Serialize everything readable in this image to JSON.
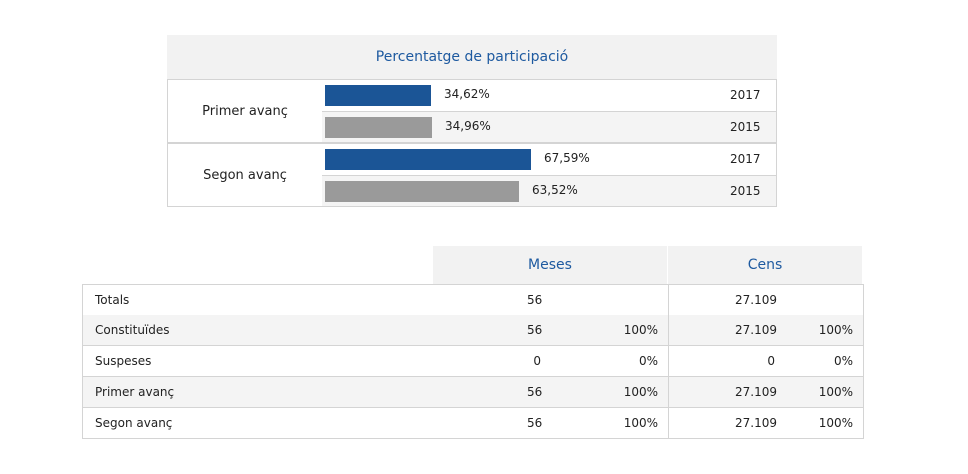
{
  "participation": {
    "title": "Percentatge de participació",
    "colors": {
      "current": "#1b5596",
      "previous": "#9a9a9a"
    },
    "groups": [
      {
        "label": "Primer avanç",
        "rows": [
          {
            "pct": "34,62%",
            "value": 34.62,
            "year": "2017"
          },
          {
            "pct": "34,96%",
            "value": 34.96,
            "year": "2015"
          }
        ]
      },
      {
        "label": "Segon avanç",
        "rows": [
          {
            "pct": "67,59%",
            "value": 67.59,
            "year": "2017"
          },
          {
            "pct": "63,52%",
            "value": 63.52,
            "year": "2015"
          }
        ]
      }
    ]
  },
  "summary": {
    "headers": {
      "meses": "Meses",
      "cens": "Cens"
    },
    "rows": [
      {
        "label": "Totals",
        "meses": "56",
        "meses_pct": "",
        "cens": "27.109",
        "cens_pct": ""
      },
      {
        "label": "Constituïdes",
        "meses": "56",
        "meses_pct": "100%",
        "cens": "27.109",
        "cens_pct": "100%"
      },
      {
        "label": "Suspeses",
        "meses": "0",
        "meses_pct": "0%",
        "cens": "0",
        "cens_pct": "0%"
      },
      {
        "label": "Primer avanç",
        "meses": "56",
        "meses_pct": "100%",
        "cens": "27.109",
        "cens_pct": "100%"
      },
      {
        "label": "Segon avanç",
        "meses": "56",
        "meses_pct": "100%",
        "cens": "27.109",
        "cens_pct": "100%"
      }
    ]
  }
}
